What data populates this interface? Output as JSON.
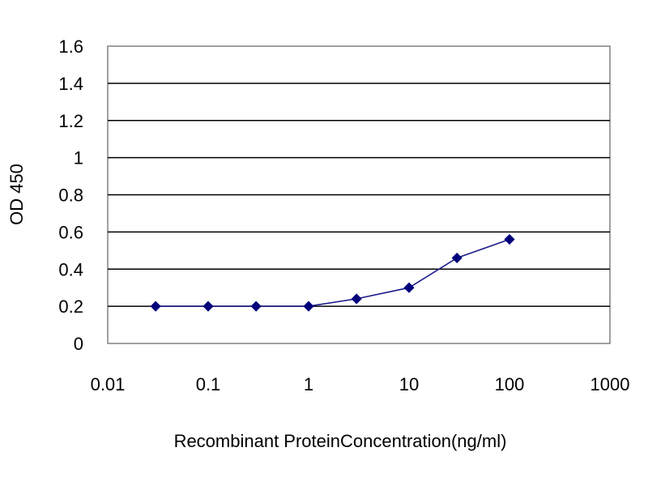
{
  "chart_data": {
    "type": "line",
    "title": "",
    "xlabel": "Recombinant ProteinConcentration(ng/ml)",
    "ylabel": "OD 450",
    "xscale": "log",
    "xlim": [
      0.01,
      1000
    ],
    "ylim": [
      0,
      1.6
    ],
    "grid": "horizontal",
    "legend": "none",
    "x_ticks": [
      {
        "value": 0.01,
        "label": "0.01"
      },
      {
        "value": 0.1,
        "label": "0.1"
      },
      {
        "value": 1,
        "label": "1"
      },
      {
        "value": 10,
        "label": "10"
      },
      {
        "value": 100,
        "label": "100"
      },
      {
        "value": 1000,
        "label": "1000"
      }
    ],
    "y_ticks": [
      {
        "value": 0,
        "label": "0"
      },
      {
        "value": 0.2,
        "label": "0.2"
      },
      {
        "value": 0.4,
        "label": "0.4"
      },
      {
        "value": 0.6,
        "label": "0.6"
      },
      {
        "value": 0.8,
        "label": "0.8"
      },
      {
        "value": 1,
        "label": "1"
      },
      {
        "value": 1.2,
        "label": "1.2"
      },
      {
        "value": 1.4,
        "label": "1.4"
      },
      {
        "value": 1.6,
        "label": "1.6"
      }
    ],
    "series": [
      {
        "x": [
          0.03,
          0.1,
          0.3,
          1,
          3,
          10,
          30,
          100
        ],
        "y": [
          0.2,
          0.2,
          0.2,
          0.2,
          0.24,
          0.3,
          0.46,
          0.56
        ]
      }
    ],
    "colors": {
      "series": "#1a1a8c",
      "marker": "#00007a",
      "grid": "#000000",
      "frame": "#808080"
    }
  }
}
